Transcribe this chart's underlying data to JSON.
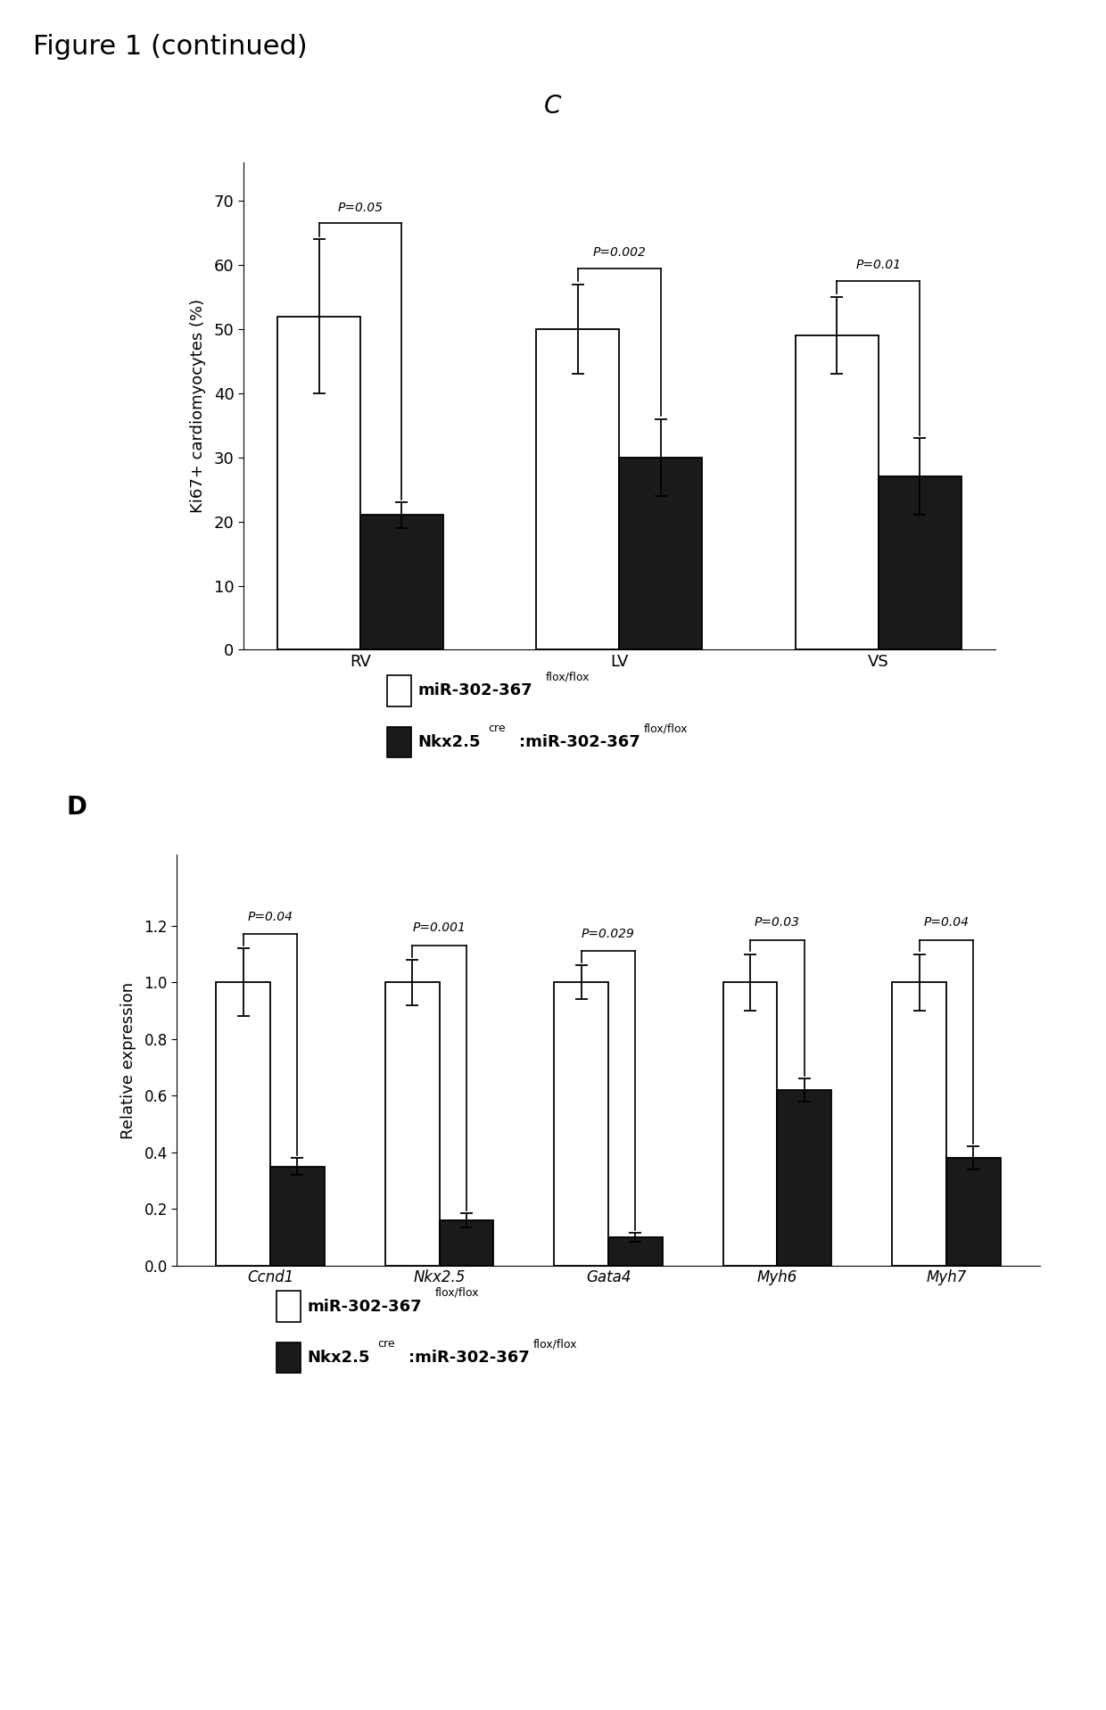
{
  "fig_title": "Figure 1 (continued)",
  "panel_c": {
    "label": "C",
    "categories": [
      "RV",
      "LV",
      "VS"
    ],
    "white_bars": [
      52,
      50,
      49
    ],
    "black_bars": [
      21,
      30,
      27
    ],
    "white_errors": [
      12,
      7,
      6
    ],
    "black_errors": [
      2,
      6,
      6
    ],
    "pvalues": [
      "P=0.05",
      "P=0.002",
      "P=0.01"
    ],
    "ylabel": "Ki67+ cardiomyocytes (%)",
    "ylim": [
      0,
      76
    ],
    "yticks": [
      0,
      10,
      20,
      30,
      40,
      50,
      60,
      70
    ]
  },
  "panel_d": {
    "label": "D",
    "categories": [
      "Ccnd1",
      "Nkx2.5",
      "Gata4",
      "Myh6",
      "Myh7"
    ],
    "white_bars": [
      1.0,
      1.0,
      1.0,
      1.0,
      1.0
    ],
    "black_bars": [
      0.35,
      0.16,
      0.1,
      0.62,
      0.38
    ],
    "white_errors": [
      0.12,
      0.08,
      0.06,
      0.1,
      0.1
    ],
    "black_errors": [
      0.03,
      0.025,
      0.015,
      0.04,
      0.04
    ],
    "pvalues": [
      "P=0.04",
      "P=0.001",
      "P=0.029",
      "P=0.03",
      "P=0.04"
    ],
    "ylabel": "Relative expression",
    "ylim": [
      0,
      1.45
    ],
    "yticks": [
      0,
      0.2,
      0.4,
      0.6,
      0.8,
      1.0,
      1.2
    ]
  },
  "bar_width": 0.32,
  "white_color": "#FFFFFF",
  "black_color": "#1a1a1a",
  "edge_color": "#000000",
  "bg_color": "#FFFFFF"
}
